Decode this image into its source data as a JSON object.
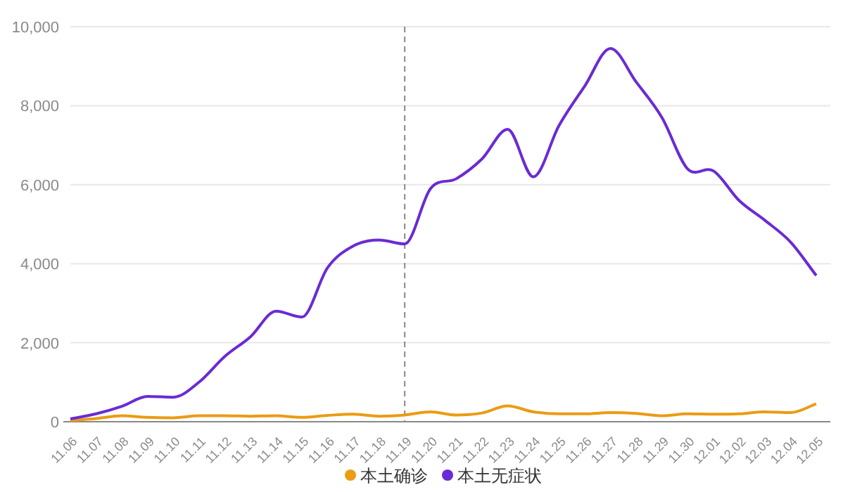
{
  "chart_data": {
    "type": "line",
    "categories": [
      "11.06",
      "11.07",
      "11.08",
      "11.09",
      "11.10",
      "11.11",
      "11.12",
      "11.13",
      "11.14",
      "11.15",
      "11.16",
      "11.17",
      "11.18",
      "11.19",
      "11.20",
      "11.21",
      "11.22",
      "11.23",
      "11.24",
      "11.25",
      "11.26",
      "11.27",
      "11.28",
      "11.29",
      "11.30",
      "12.01",
      "12.02",
      "12.03",
      "12.04",
      "12.05"
    ],
    "series": [
      {
        "name": "本土确诊",
        "color": "#eb9b14",
        "values": [
          30,
          80,
          150,
          110,
          100,
          150,
          150,
          140,
          150,
          110,
          160,
          190,
          140,
          170,
          250,
          170,
          220,
          400,
          250,
          200,
          200,
          230,
          210,
          150,
          200,
          190,
          200,
          250,
          230,
          450
        ]
      },
      {
        "name": "本土无症状",
        "color": "#6a2bd4",
        "values": [
          70,
          200,
          390,
          640,
          620,
          1000,
          1650,
          2150,
          2800,
          2650,
          3900,
          4450,
          4600,
          4500,
          5900,
          6150,
          6650,
          7400,
          6200,
          7500,
          8500,
          9450,
          8600,
          7700,
          6400,
          6350,
          5600,
          5100,
          4550,
          3700
        ]
      }
    ],
    "ylim": [
      0,
      10000
    ],
    "yticks": [
      {
        "value": 0,
        "label": "0"
      },
      {
        "value": 2000,
        "label": "2,000"
      },
      {
        "value": 4000,
        "label": "4,000"
      },
      {
        "value": 6000,
        "label": "6,000"
      },
      {
        "value": 8000,
        "label": "8,000"
      },
      {
        "value": 10000,
        "label": "10,000"
      }
    ],
    "grid": "y",
    "legend": "bottom",
    "marker": "none",
    "line_style": "solid",
    "ref_lines": [
      {
        "axis": "x",
        "value": "11.19",
        "color": "#888888",
        "line_style": "dashed"
      }
    ]
  }
}
